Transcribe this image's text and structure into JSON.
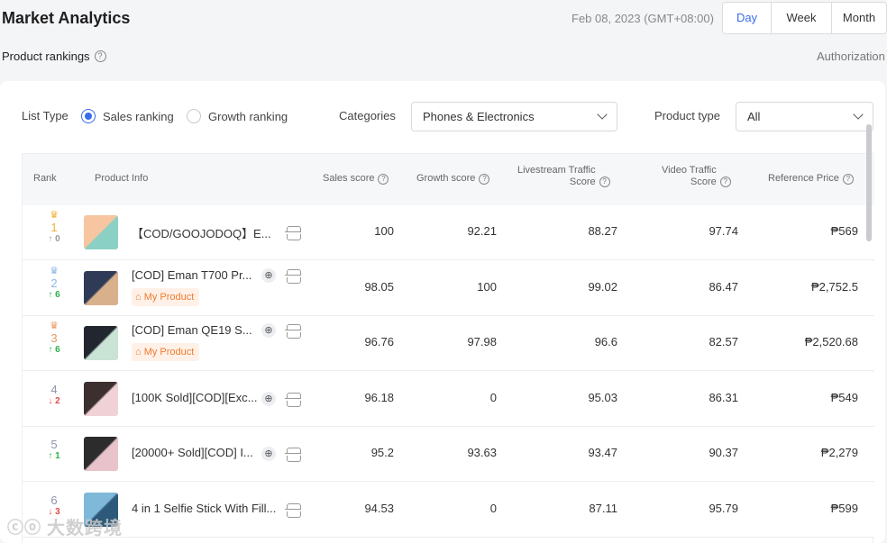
{
  "header": {
    "title": "Market Analytics",
    "date": "Feb 08, 2023 (GMT+08:00)",
    "periods": [
      "Day",
      "Week",
      "Month"
    ],
    "active_period": "Day"
  },
  "sub": {
    "title": "Product rankings",
    "help_glyph": "?",
    "auth_link": "Authorization"
  },
  "filters": {
    "list_type_label": "List Type",
    "sales_ranking": "Sales ranking",
    "growth_ranking": "Growth ranking",
    "categories_label": "Categories",
    "categories_value": "Phones & Electronics",
    "product_type_label": "Product type",
    "product_type_value": "All"
  },
  "table": {
    "headers": {
      "rank": "Rank",
      "product": "Product Info",
      "sales": "Sales score",
      "growth": "Growth score",
      "live_1": "Livestream Traffic",
      "live_2": "Score",
      "video_1": "Video Traffic",
      "video_2": "Score",
      "price": "Reference Price"
    },
    "rows": [
      {
        "rank": "1",
        "crown": "gold",
        "trend": "↑ 0",
        "trend_dir": "flat",
        "name": "【COD/GOOJODOQ】E...",
        "badge": "",
        "globe": false,
        "sales": "100",
        "growth": "92.21",
        "live": "88.27",
        "video": "97.74",
        "price": "₱569"
      },
      {
        "rank": "2",
        "crown": "silver",
        "trend": "↑ 6",
        "trend_dir": "up",
        "name": "[COD] Eman T700 Pr...",
        "badge": "My Product",
        "globe": true,
        "sales": "98.05",
        "growth": "100",
        "live": "99.02",
        "video": "86.47",
        "price": "₱2,752.5"
      },
      {
        "rank": "3",
        "crown": "bronze",
        "trend": "↑ 6",
        "trend_dir": "up",
        "name": "[COD] Eman QE19 S...",
        "badge": "My Product",
        "globe": true,
        "sales": "96.76",
        "growth": "97.98",
        "live": "96.6",
        "video": "82.57",
        "price": "₱2,520.68"
      },
      {
        "rank": "4",
        "crown": "",
        "trend": "↓ 2",
        "trend_dir": "down",
        "name": "[100K Sold][COD][Exc...",
        "badge": "",
        "globe": true,
        "sales": "96.18",
        "growth": "0",
        "live": "95.03",
        "video": "86.31",
        "price": "₱549"
      },
      {
        "rank": "5",
        "crown": "",
        "trend": "↑ 1",
        "trend_dir": "up",
        "name": "[20000+ Sold][COD] I...",
        "badge": "",
        "globe": true,
        "sales": "95.2",
        "growth": "93.63",
        "live": "93.47",
        "video": "90.37",
        "price": "₱2,279"
      },
      {
        "rank": "6",
        "crown": "",
        "trend": "↓ 3",
        "trend_dir": "down",
        "name": "4 in 1 Selfie Stick With Fill...",
        "badge": "",
        "globe": false,
        "sales": "94.53",
        "growth": "0",
        "live": "87.11",
        "video": "95.79",
        "price": "₱599"
      }
    ]
  },
  "icons": {
    "crown": "crown-icon",
    "globe": "globe-icon",
    "scan": "scan-icon",
    "chevron": "chevron-down-icon",
    "bag": "bag-icon"
  },
  "colors": {
    "accent": "#3a6be8",
    "gold": "#f2b233",
    "silver": "#8fb4e3",
    "bronze": "#e5975e",
    "up": "#2bb14b",
    "down": "#e5484d",
    "badge_bg": "#fff1e8",
    "badge_text": "#f07a2d"
  },
  "watermark": "大数跨境"
}
